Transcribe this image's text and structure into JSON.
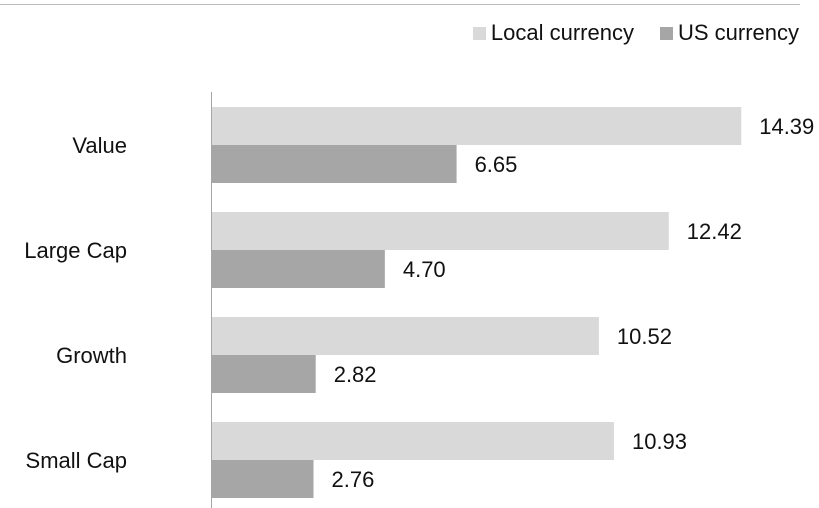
{
  "chart_data": {
    "type": "bar",
    "orientation": "horizontal",
    "categories": [
      "Value",
      "Large Cap",
      "Growth",
      "Small Cap"
    ],
    "series": [
      {
        "name": "Local currency",
        "values": [
          14.39,
          12.42,
          10.52,
          10.93
        ],
        "labels": [
          "14.39",
          "12.42",
          "10.52",
          "10.93"
        ]
      },
      {
        "name": "US currency",
        "values": [
          6.65,
          4.7,
          2.82,
          2.76
        ],
        "labels": [
          "6.65",
          "4.70",
          "2.82",
          "2.76"
        ]
      }
    ],
    "xlim": [
      0,
      21.1
    ],
    "legend_position": "top-right",
    "grid": false,
    "title": "",
    "xlabel": "",
    "ylabel": ""
  },
  "colors": {
    "Local currency": "#d9d9d9",
    "US currency": "#a6a6a6",
    "axis": "#a6a6a6",
    "rule": "#bdbdbd"
  }
}
